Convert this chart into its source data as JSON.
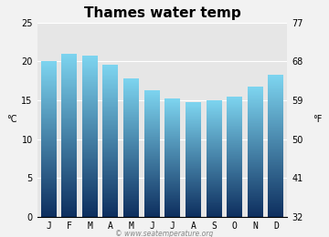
{
  "title": "Thames water temp",
  "months": [
    "J",
    "F",
    "M",
    "A",
    "M",
    "J",
    "J",
    "A",
    "S",
    "O",
    "N",
    "D"
  ],
  "values_c": [
    20.0,
    21.0,
    20.7,
    19.5,
    17.8,
    16.3,
    15.2,
    14.7,
    15.0,
    15.5,
    16.7,
    18.2
  ],
  "ylim_c": [
    0,
    25
  ],
  "yticks_c": [
    0,
    5,
    10,
    15,
    20,
    25
  ],
  "yticks_f": [
    32,
    41,
    50,
    59,
    68,
    77
  ],
  "ylabel_left": "°C",
  "ylabel_right": "°F",
  "color_top": "#7dd4ef",
  "color_bottom": "#0d2e5e",
  "background_color": "#f2f2f2",
  "plot_bg": "#e6e6e6",
  "watermark": "© www.seatemperature.org",
  "title_fontsize": 11,
  "label_fontsize": 7,
  "tick_fontsize": 7,
  "watermark_fontsize": 5.5
}
